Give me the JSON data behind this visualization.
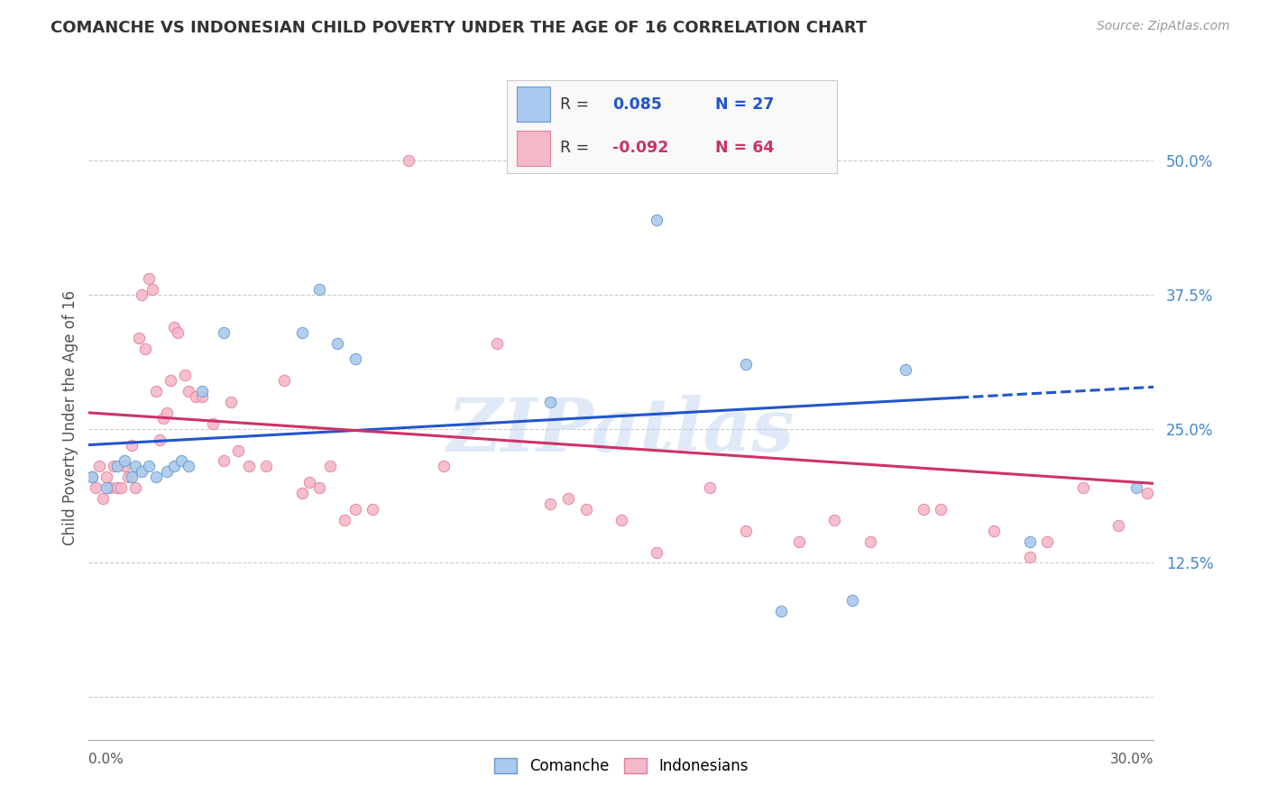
{
  "title": "COMANCHE VS INDONESIAN CHILD POVERTY UNDER THE AGE OF 16 CORRELATION CHART",
  "source": "Source: ZipAtlas.com",
  "ylabel": "Child Poverty Under the Age of 16",
  "ytick_vals": [
    0.0,
    0.125,
    0.25,
    0.375,
    0.5
  ],
  "ytick_labels": [
    "",
    "12.5%",
    "25.0%",
    "37.5%",
    "50.0%"
  ],
  "xmin": 0.0,
  "xmax": 0.3,
  "ymin": -0.04,
  "ymax": 0.56,
  "watermark": "ZIPatlas",
  "comanche_color": "#aac9ee",
  "indonesian_color": "#f5b8c8",
  "comanche_edge": "#6699cc",
  "indonesian_edge": "#e08099",
  "trend_blue": "#2255cc",
  "trend_pink": "#cc3366",
  "comanche_x": [
    0.001,
    0.005,
    0.008,
    0.01,
    0.012,
    0.013,
    0.015,
    0.017,
    0.019,
    0.022,
    0.024,
    0.026,
    0.028,
    0.032,
    0.038,
    0.06,
    0.065,
    0.07,
    0.075,
    0.13,
    0.16,
    0.185,
    0.195,
    0.215,
    0.23,
    0.265,
    0.295
  ],
  "comanche_y": [
    0.205,
    0.195,
    0.215,
    0.22,
    0.205,
    0.215,
    0.21,
    0.215,
    0.205,
    0.21,
    0.215,
    0.22,
    0.215,
    0.285,
    0.34,
    0.34,
    0.38,
    0.33,
    0.315,
    0.275,
    0.445,
    0.31,
    0.08,
    0.09,
    0.305,
    0.145,
    0.195
  ],
  "indonesian_x": [
    0.001,
    0.002,
    0.003,
    0.004,
    0.005,
    0.006,
    0.007,
    0.008,
    0.009,
    0.01,
    0.011,
    0.012,
    0.013,
    0.014,
    0.015,
    0.016,
    0.017,
    0.018,
    0.019,
    0.02,
    0.021,
    0.022,
    0.023,
    0.024,
    0.025,
    0.027,
    0.028,
    0.03,
    0.032,
    0.035,
    0.038,
    0.04,
    0.042,
    0.045,
    0.05,
    0.055,
    0.06,
    0.062,
    0.065,
    0.068,
    0.072,
    0.075,
    0.08,
    0.09,
    0.1,
    0.115,
    0.13,
    0.135,
    0.14,
    0.15,
    0.16,
    0.175,
    0.185,
    0.2,
    0.21,
    0.22,
    0.235,
    0.24,
    0.255,
    0.265,
    0.27,
    0.28,
    0.29,
    0.298
  ],
  "indonesian_y": [
    0.205,
    0.195,
    0.215,
    0.185,
    0.205,
    0.195,
    0.215,
    0.195,
    0.195,
    0.215,
    0.205,
    0.235,
    0.195,
    0.335,
    0.375,
    0.325,
    0.39,
    0.38,
    0.285,
    0.24,
    0.26,
    0.265,
    0.295,
    0.345,
    0.34,
    0.3,
    0.285,
    0.28,
    0.28,
    0.255,
    0.22,
    0.275,
    0.23,
    0.215,
    0.215,
    0.295,
    0.19,
    0.2,
    0.195,
    0.215,
    0.165,
    0.175,
    0.175,
    0.5,
    0.215,
    0.33,
    0.18,
    0.185,
    0.175,
    0.165,
    0.135,
    0.195,
    0.155,
    0.145,
    0.165,
    0.145,
    0.175,
    0.175,
    0.155,
    0.13,
    0.145,
    0.195,
    0.16,
    0.19
  ],
  "bg_color": "#ffffff",
  "grid_color": "#cccccc",
  "title_color": "#333333",
  "right_label_color": "#4488cc",
  "marker_size": 80,
  "trend_blue_solid_end": 0.245,
  "blue_trend_intercept": 0.235,
  "blue_trend_slope": 0.18,
  "pink_trend_intercept": 0.265,
  "pink_trend_slope": -0.22
}
